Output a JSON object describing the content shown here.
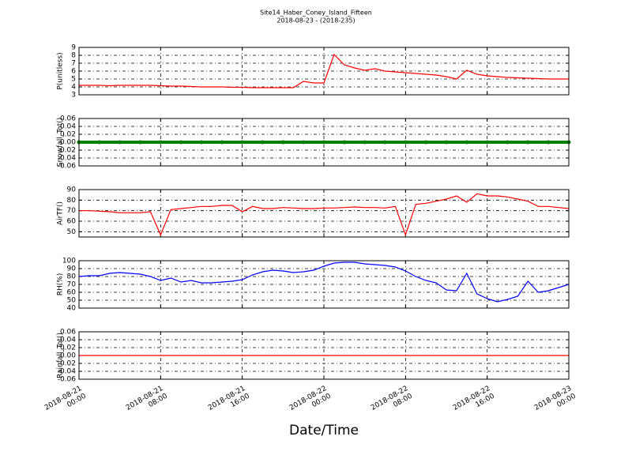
{
  "chart_data": [
    {
      "type": "line",
      "title": "Site14_Haber_Coney_Island_Fifteen",
      "subtitle": "2018-08-23 - (2018-235)",
      "ylabel": "P(unitless)",
      "color": "#ff0000",
      "ylim": [
        3,
        9
      ],
      "yticks": [
        3,
        4,
        5,
        6,
        7,
        8,
        9
      ],
      "grid": true,
      "x": [
        "2018-08-21 00:00",
        "2018-08-21 01:00",
        "2018-08-21 02:00",
        "2018-08-21 03:00",
        "2018-08-21 04:00",
        "2018-08-21 05:00",
        "2018-08-21 06:00",
        "2018-08-21 07:00",
        "2018-08-21 08:00",
        "2018-08-21 09:00",
        "2018-08-21 10:00",
        "2018-08-21 11:00",
        "2018-08-21 12:00",
        "2018-08-21 13:00",
        "2018-08-21 14:00",
        "2018-08-21 15:00",
        "2018-08-21 16:00",
        "2018-08-21 17:00",
        "2018-08-21 18:00",
        "2018-08-21 19:00",
        "2018-08-21 20:00",
        "2018-08-21 21:00",
        "2018-08-21 22:00",
        "2018-08-21 23:00",
        "2018-08-22 00:00",
        "2018-08-22 01:00",
        "2018-08-22 02:00",
        "2018-08-22 03:00",
        "2018-08-22 04:00",
        "2018-08-22 05:00",
        "2018-08-22 06:00",
        "2018-08-22 07:00",
        "2018-08-22 08:00",
        "2018-08-22 09:00",
        "2018-08-22 10:00",
        "2018-08-22 11:00",
        "2018-08-22 12:00",
        "2018-08-22 13:00",
        "2018-08-22 14:00",
        "2018-08-22 15:00",
        "2018-08-22 16:00",
        "2018-08-22 17:00",
        "2018-08-22 18:00",
        "2018-08-22 19:00",
        "2018-08-22 20:00",
        "2018-08-22 21:00",
        "2018-08-22 22:00",
        "2018-08-22 23:00",
        "2018-08-23 00:00"
      ],
      "values": [
        4.2,
        4.2,
        4.2,
        4.15,
        4.2,
        4.2,
        4.2,
        4.2,
        4.15,
        4.1,
        4.1,
        4.05,
        4.0,
        4.0,
        4.0,
        3.95,
        3.95,
        3.9,
        3.9,
        3.9,
        3.9,
        3.9,
        4.7,
        4.5,
        4.5,
        8.1,
        6.8,
        6.4,
        6.1,
        6.3,
        6.0,
        5.9,
        5.8,
        5.7,
        5.6,
        5.5,
        5.3,
        5.0,
        6.1,
        5.6,
        5.4,
        5.3,
        5.2,
        5.15,
        5.1,
        5.05,
        5.0,
        5.0,
        5.0
      ]
    },
    {
      "type": "line",
      "ylabel": "Snowfall_Tot()",
      "color": "#008000",
      "marker": true,
      "ylim": [
        -0.06,
        0.06
      ],
      "yticks": [
        -0.06,
        -0.04,
        -0.02,
        {
          "value": 0,
          "label": "0.00"
        },
        0.02,
        0.04,
        0.06
      ],
      "grid": true,
      "x": [
        "2018-08-21 00:00",
        "2018-08-21 02:00",
        "2018-08-21 04:00",
        "2018-08-21 06:00",
        "2018-08-21 08:00",
        "2018-08-21 10:00",
        "2018-08-21 12:00",
        "2018-08-21 14:00",
        "2018-08-21 16:00",
        "2018-08-21 18:00",
        "2018-08-21 20:00",
        "2018-08-21 22:00",
        "2018-08-22 00:00",
        "2018-08-22 02:00",
        "2018-08-22 04:00",
        "2018-08-22 06:00",
        "2018-08-22 08:00",
        "2018-08-22 10:00",
        "2018-08-22 12:00",
        "2018-08-22 14:00",
        "2018-08-22 16:00",
        "2018-08-22 18:00",
        "2018-08-22 20:00",
        "2018-08-22 22:00",
        "2018-08-23 00:00"
      ],
      "values": [
        0,
        0,
        0,
        0,
        0,
        0,
        0,
        0,
        0,
        0,
        0,
        0,
        0,
        0,
        0,
        0,
        0,
        0,
        0,
        0,
        0,
        0,
        0,
        0,
        0
      ]
    },
    {
      "type": "line",
      "ylabel": "AirTF()",
      "color": "#ff0000",
      "ylim": [
        45,
        90
      ],
      "yticks": [
        50,
        60,
        70,
        80,
        90
      ],
      "grid": true,
      "x": [
        "2018-08-21 00:00",
        "2018-08-21 01:00",
        "2018-08-21 02:00",
        "2018-08-21 03:00",
        "2018-08-21 04:00",
        "2018-08-21 05:00",
        "2018-08-21 06:00",
        "2018-08-21 07:00",
        "2018-08-21 08:00",
        "2018-08-21 09:00",
        "2018-08-21 10:00",
        "2018-08-21 11:00",
        "2018-08-21 12:00",
        "2018-08-21 13:00",
        "2018-08-21 14:00",
        "2018-08-21 15:00",
        "2018-08-21 16:00",
        "2018-08-21 17:00",
        "2018-08-21 18:00",
        "2018-08-21 19:00",
        "2018-08-21 20:00",
        "2018-08-21 21:00",
        "2018-08-21 22:00",
        "2018-08-21 23:00",
        "2018-08-22 00:00",
        "2018-08-22 01:00",
        "2018-08-22 02:00",
        "2018-08-22 03:00",
        "2018-08-22 04:00",
        "2018-08-22 05:00",
        "2018-08-22 06:00",
        "2018-08-22 07:00",
        "2018-08-22 08:00",
        "2018-08-22 09:00",
        "2018-08-22 10:00",
        "2018-08-22 11:00",
        "2018-08-22 12:00",
        "2018-08-22 13:00",
        "2018-08-22 14:00",
        "2018-08-22 15:00",
        "2018-08-22 16:00",
        "2018-08-22 17:00",
        "2018-08-22 18:00",
        "2018-08-22 19:00",
        "2018-08-22 20:00",
        "2018-08-22 21:00",
        "2018-08-22 22:00",
        "2018-08-22 23:00",
        "2018-08-23 00:00"
      ],
      "values": [
        70,
        70,
        69.5,
        69,
        68,
        68,
        68,
        69,
        47,
        71,
        72,
        73,
        74,
        74,
        75,
        75,
        69,
        74,
        72,
        72,
        73,
        72.5,
        72,
        72,
        72.5,
        72.5,
        73,
        73.5,
        73,
        73,
        72.5,
        74,
        47,
        76,
        77,
        79,
        81,
        84,
        78,
        86,
        84,
        84,
        83,
        81,
        79,
        74,
        74,
        73,
        72
      ]
    },
    {
      "type": "line",
      "ylabel": "RH(%)",
      "color": "#0000ff",
      "ylim": [
        40,
        100
      ],
      "yticks": [
        40,
        50,
        60,
        70,
        80,
        90,
        100
      ],
      "grid": true,
      "x": [
        "2018-08-21 00:00",
        "2018-08-21 01:00",
        "2018-08-21 02:00",
        "2018-08-21 03:00",
        "2018-08-21 04:00",
        "2018-08-21 05:00",
        "2018-08-21 06:00",
        "2018-08-21 07:00",
        "2018-08-21 08:00",
        "2018-08-21 09:00",
        "2018-08-21 10:00",
        "2018-08-21 11:00",
        "2018-08-21 12:00",
        "2018-08-21 13:00",
        "2018-08-21 14:00",
        "2018-08-21 15:00",
        "2018-08-21 16:00",
        "2018-08-21 17:00",
        "2018-08-21 18:00",
        "2018-08-21 19:00",
        "2018-08-21 20:00",
        "2018-08-21 21:00",
        "2018-08-21 22:00",
        "2018-08-21 23:00",
        "2018-08-22 00:00",
        "2018-08-22 01:00",
        "2018-08-22 02:00",
        "2018-08-22 03:00",
        "2018-08-22 04:00",
        "2018-08-22 05:00",
        "2018-08-22 06:00",
        "2018-08-22 07:00",
        "2018-08-22 08:00",
        "2018-08-22 09:00",
        "2018-08-22 10:00",
        "2018-08-22 11:00",
        "2018-08-22 12:00",
        "2018-08-22 13:00",
        "2018-08-22 14:00",
        "2018-08-22 15:00",
        "2018-08-22 16:00",
        "2018-08-22 17:00",
        "2018-08-22 18:00",
        "2018-08-22 19:00",
        "2018-08-22 20:00",
        "2018-08-22 21:00",
        "2018-08-22 22:00",
        "2018-08-22 23:00",
        "2018-08-23 00:00"
      ],
      "values": [
        80,
        81,
        81,
        84,
        85,
        84,
        83,
        80,
        75,
        78,
        73,
        75,
        72,
        72,
        73,
        74,
        76,
        82,
        86,
        88,
        87,
        85,
        86,
        88,
        93,
        97,
        98,
        98,
        96,
        95,
        94,
        92,
        87,
        80,
        75,
        72,
        63,
        62,
        84,
        58,
        52,
        48,
        51,
        55,
        74,
        60,
        62,
        66,
        70
      ]
    },
    {
      "type": "line",
      "ylabel": "Rainfall_Tot()",
      "color": "#ff0000",
      "xlabel": "Date/Time",
      "ylim": [
        -0.06,
        0.06
      ],
      "yticks": [
        -0.06,
        -0.04,
        -0.02,
        {
          "value": 0,
          "label": "0.00"
        },
        0.02,
        0.04,
        0.06
      ],
      "grid": true,
      "xlim": [
        "2018-08-21 00:00",
        "2018-08-23 00:00"
      ],
      "xticks": [
        {
          "value": "2018-08-21 00:00",
          "label": "2018-08-21\n00:00"
        },
        {
          "value": "2018-08-21 08:00",
          "label": "2018-08-21\n08:00"
        },
        {
          "value": "2018-08-21 16:00",
          "label": "2018-08-21\n16:00"
        },
        {
          "value": "2018-08-22 00:00",
          "label": "2018-08-22\n00:00"
        },
        {
          "value": "2018-08-22 08:00",
          "label": "2018-08-22\n08:00"
        },
        {
          "value": "2018-08-22 16:00",
          "label": "2018-08-22\n16:00"
        },
        {
          "value": "2018-08-23 00:00",
          "label": "2018-08-23\n00:00"
        }
      ],
      "x": [
        "2018-08-21 00:00",
        "2018-08-21 02:00",
        "2018-08-21 04:00",
        "2018-08-21 06:00",
        "2018-08-21 08:00",
        "2018-08-21 10:00",
        "2018-08-21 12:00",
        "2018-08-21 14:00",
        "2018-08-21 16:00",
        "2018-08-21 18:00",
        "2018-08-21 20:00",
        "2018-08-21 22:00",
        "2018-08-22 00:00",
        "2018-08-22 02:00",
        "2018-08-22 04:00",
        "2018-08-22 06:00",
        "2018-08-22 08:00",
        "2018-08-22 10:00",
        "2018-08-22 12:00",
        "2018-08-22 14:00",
        "2018-08-22 16:00",
        "2018-08-22 18:00",
        "2018-08-22 20:00",
        "2018-08-22 22:00",
        "2018-08-23 00:00"
      ],
      "values": [
        0,
        0,
        0,
        0,
        0,
        0,
        0,
        0,
        0,
        0,
        0,
        0,
        0,
        0,
        0,
        0,
        0,
        0,
        0,
        0,
        0,
        0,
        0,
        0,
        0
      ]
    }
  ]
}
